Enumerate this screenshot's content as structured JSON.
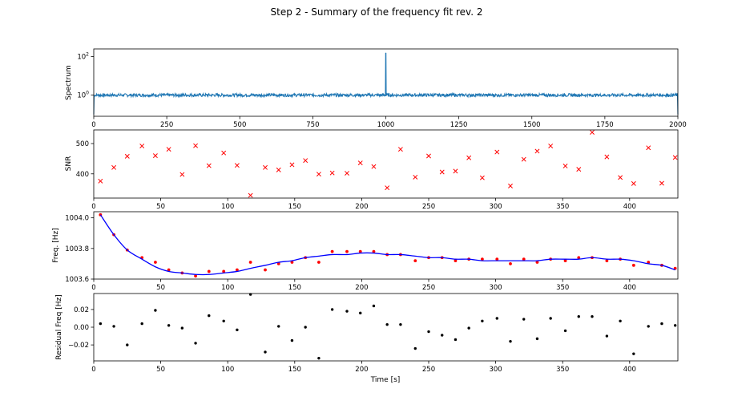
{
  "title": "Step 2 - Summary of the frequency fit rev. 2",
  "colors": {
    "spectrum": "#1f77b4",
    "snr_marker": "#ff0000",
    "freq_points": "#ff0000",
    "freq_fit": "#0000ff",
    "residual_points": "#000000"
  },
  "chart_data": [
    {
      "type": "line",
      "ylabel": "Spectrum",
      "xlabel": "",
      "xlim": [
        0,
        2000
      ],
      "ylim_log10": [
        -1.1,
        2.4
      ],
      "yscale": "log",
      "x_ticks": [
        "0",
        "250",
        "500",
        "750",
        "1000",
        "1250",
        "1500",
        "1750",
        "2000"
      ],
      "y_ticks": [
        {
          "base": "10",
          "exp": "2",
          "value": 100
        },
        {
          "base": "10",
          "exp": "0",
          "value": 1
        }
      ],
      "baseline": 1,
      "peak": {
        "x": 1000,
        "y": 158
      },
      "edge_drop": {
        "y": 0.1
      }
    },
    {
      "type": "scatter",
      "marker": "x",
      "ylabel": "SNR",
      "xlim": [
        0,
        436
      ],
      "ylim": [
        320,
        545
      ],
      "x_ticks": [
        "0",
        "50",
        "100",
        "150",
        "200",
        "250",
        "300",
        "350",
        "400"
      ],
      "y_ticks": [
        "400",
        "500"
      ],
      "x": [
        5,
        15,
        25,
        36,
        46,
        56,
        66,
        76,
        86,
        97,
        107,
        117,
        128,
        138,
        148,
        158,
        168,
        178,
        189,
        199,
        209,
        219,
        229,
        240,
        250,
        260,
        270,
        280,
        290,
        301,
        311,
        321,
        331,
        341,
        352,
        362,
        372,
        383,
        393,
        403,
        414,
        424,
        434
      ],
      "y": [
        376,
        421,
        458,
        492,
        460,
        481,
        398,
        493,
        427,
        469,
        428,
        329,
        421,
        413,
        430,
        444,
        399,
        403,
        402,
        436,
        424,
        354,
        481,
        389,
        459,
        406,
        409,
        453,
        387,
        472,
        360,
        448,
        475,
        492,
        426,
        415,
        537,
        456,
        388,
        368,
        486,
        369,
        454
      ]
    },
    {
      "type": "scatter",
      "ylabel": "Freq. [Hz]",
      "xlim": [
        0,
        436
      ],
      "ylim": [
        1003.6,
        1004.04
      ],
      "x_ticks": [
        "0",
        "50",
        "100",
        "150",
        "200",
        "250",
        "300",
        "350",
        "400"
      ],
      "y_ticks": [
        "1003.6",
        "1003.8",
        "1004.0"
      ],
      "points": {
        "x": [
          5,
          15,
          25,
          36,
          46,
          56,
          66,
          76,
          86,
          97,
          107,
          117,
          128,
          138,
          148,
          158,
          168,
          178,
          189,
          199,
          209,
          219,
          229,
          240,
          250,
          260,
          270,
          280,
          290,
          301,
          311,
          321,
          331,
          341,
          352,
          362,
          372,
          383,
          393,
          403,
          414,
          424,
          434
        ],
        "y": [
          1004.02,
          1003.89,
          1003.79,
          1003.74,
          1003.71,
          1003.66,
          1003.64,
          1003.62,
          1003.65,
          1003.65,
          1003.66,
          1003.71,
          1003.66,
          1003.7,
          1003.71,
          1003.74,
          1003.71,
          1003.78,
          1003.78,
          1003.78,
          1003.78,
          1003.76,
          1003.76,
          1003.72,
          1003.74,
          1003.74,
          1003.72,
          1003.73,
          1003.73,
          1003.73,
          1003.7,
          1003.73,
          1003.71,
          1003.73,
          1003.72,
          1003.74,
          1003.74,
          1003.72,
          1003.73,
          1003.69,
          1003.71,
          1003.69,
          1003.67
        ]
      },
      "fit": {
        "x": [
          5,
          15,
          25,
          36,
          46,
          56,
          66,
          76,
          86,
          97,
          107,
          117,
          128,
          138,
          148,
          158,
          168,
          178,
          189,
          199,
          209,
          219,
          229,
          240,
          250,
          260,
          270,
          280,
          290,
          301,
          311,
          321,
          331,
          341,
          352,
          362,
          372,
          383,
          393,
          403,
          414,
          424,
          434
        ],
        "y": [
          1004.02,
          1003.89,
          1003.79,
          1003.73,
          1003.68,
          1003.65,
          1003.64,
          1003.63,
          1003.63,
          1003.64,
          1003.65,
          1003.67,
          1003.69,
          1003.71,
          1003.72,
          1003.74,
          1003.75,
          1003.76,
          1003.76,
          1003.77,
          1003.77,
          1003.76,
          1003.76,
          1003.75,
          1003.74,
          1003.74,
          1003.73,
          1003.73,
          1003.72,
          1003.72,
          1003.72,
          1003.72,
          1003.72,
          1003.73,
          1003.73,
          1003.73,
          1003.74,
          1003.73,
          1003.73,
          1003.72,
          1003.7,
          1003.69,
          1003.66
        ]
      }
    },
    {
      "type": "scatter",
      "ylabel": "Residual Freq [Hz]",
      "xlabel": "Time [s]",
      "xlim": [
        0,
        436
      ],
      "ylim": [
        -0.038,
        0.038
      ],
      "x_ticks": [
        "0",
        "50",
        "100",
        "150",
        "200",
        "250",
        "300",
        "350",
        "400"
      ],
      "y_ticks": [
        "−0.02",
        "0.00",
        "0.02"
      ],
      "y_tick_values": [
        -0.02,
        0,
        0.02
      ],
      "x": [
        5,
        15,
        25,
        36,
        46,
        56,
        66,
        76,
        86,
        97,
        107,
        117,
        128,
        138,
        148,
        158,
        168,
        178,
        189,
        199,
        209,
        219,
        229,
        240,
        250,
        260,
        270,
        280,
        290,
        301,
        311,
        321,
        331,
        341,
        352,
        362,
        372,
        383,
        393,
        403,
        414,
        424,
        434
      ],
      "y": [
        0.004,
        0.001,
        -0.02,
        0.004,
        0.019,
        0.002,
        -0.001,
        -0.018,
        0.013,
        0.007,
        -0.003,
        0.037,
        -0.028,
        0.001,
        -0.015,
        0.0,
        -0.035,
        0.02,
        0.018,
        0.016,
        0.024,
        0.003,
        0.003,
        -0.024,
        -0.005,
        -0.009,
        -0.014,
        -0.001,
        0.007,
        0.01,
        -0.016,
        0.009,
        -0.013,
        0.01,
        -0.004,
        0.012,
        0.012,
        -0.01,
        0.007,
        -0.03,
        0.001,
        0.004,
        0.002
      ]
    }
  ]
}
